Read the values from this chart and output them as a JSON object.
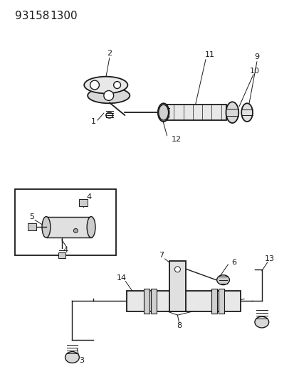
{
  "title1": "93158",
  "title2": "1300",
  "background_color": "#ffffff",
  "line_color": "#1a1a1a",
  "title_fontsize": 11,
  "label_fontsize": 8,
  "fig_width": 4.14,
  "fig_height": 5.33,
  "dpi": 100
}
